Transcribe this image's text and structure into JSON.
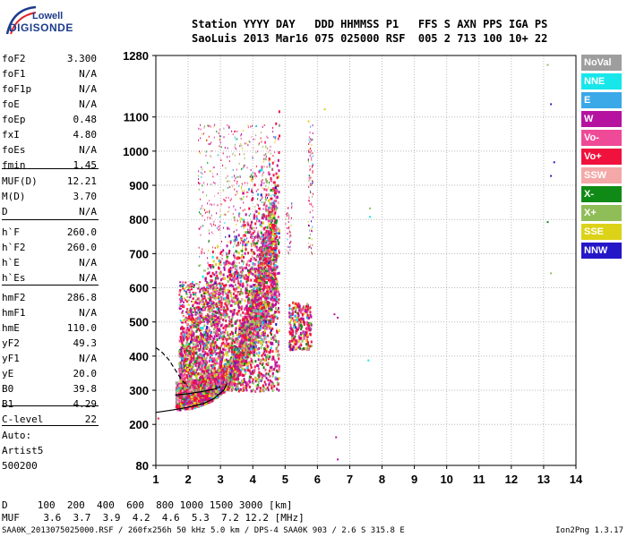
{
  "logo": {
    "top": "Lowell",
    "bottom": "DIGISONDE"
  },
  "header": {
    "row1": "Station YYYY DAY   DDD HHMMSS P1   FFS S AXN PPS IGA PS",
    "row2": "SaoLuis 2013 Mar16 075 025000 RSF  005 2 713 100 10+ 22"
  },
  "params": [
    {
      "k": "foF2",
      "v": "3.300"
    },
    {
      "k": "foF1",
      "v": "N/A"
    },
    {
      "k": "foF1p",
      "v": "N/A"
    },
    {
      "k": "foE",
      "v": "N/A"
    },
    {
      "k": "foEp",
      "v": "0.48"
    },
    {
      "k": "fxI",
      "v": "4.80"
    },
    {
      "k": "foEs",
      "v": "N/A"
    },
    {
      "k": "fmin",
      "v": "1.45"
    },
    {
      "k": "MUF(D)",
      "v": "12.21"
    },
    {
      "k": "M(D)",
      "v": "3.70"
    },
    {
      "k": "D",
      "v": "N/A"
    },
    {
      "k": "h`F",
      "v": "260.0"
    },
    {
      "k": "h`F2",
      "v": "260.0"
    },
    {
      "k": "h`E",
      "v": "N/A"
    },
    {
      "k": "h`Es",
      "v": "N/A"
    },
    {
      "k": "hmF2",
      "v": "286.8"
    },
    {
      "k": "hmF1",
      "v": "N/A"
    },
    {
      "k": "hmE",
      "v": "110.0"
    },
    {
      "k": "yF2",
      "v": "49.3"
    },
    {
      "k": "yF1",
      "v": "N/A"
    },
    {
      "k": "yE",
      "v": "20.0"
    },
    {
      "k": "B0",
      "v": "39.8"
    },
    {
      "k": "B1",
      "v": "4.29"
    },
    {
      "k": "C-level",
      "v": "22"
    }
  ],
  "auto": [
    "Auto:",
    "Artist5",
    "500200"
  ],
  "footer": {
    "row1": "D     100  200  400  600  800 1000 1500 3000 [km]",
    "row2": "MUF    3.6  3.7  3.9  4.2  4.6  5.3  7.2 12.2 [MHz]",
    "left": "SAA0K_2013075025000.RSF / 260fx256h 50 kHz 5.0 km / DPS-4 SAA0K 903 / 2.6 S 315.8 E",
    "right": "Ion2Png 1.3.17"
  },
  "legend": [
    {
      "label": "NoVal",
      "color": "#9e9e9e"
    },
    {
      "label": "NNE",
      "color": "#17e6ea"
    },
    {
      "label": "E",
      "color": "#3ba8e8"
    },
    {
      "label": "W",
      "color": "#b5139f"
    },
    {
      "label": "Vo-",
      "color": "#ee4a97"
    },
    {
      "label": "Vo+",
      "color": "#f0123d"
    },
    {
      "label": "SSW",
      "color": "#f4a8a8"
    },
    {
      "label": "X-",
      "color": "#108a16"
    },
    {
      "label": "X+",
      "color": "#8fbe58"
    },
    {
      "label": "SSE",
      "color": "#dcd218"
    },
    {
      "label": "NNW",
      "color": "#2417c8"
    }
  ],
  "chart_data": {
    "type": "scatter",
    "x_ticks": [
      1,
      2,
      3,
      4,
      5,
      6,
      7,
      8,
      9,
      10,
      11,
      12,
      13,
      14
    ],
    "y_ticks": [
      80,
      200,
      300,
      400,
      500,
      600,
      700,
      800,
      900,
      1000,
      1100,
      1280
    ],
    "xlim": [
      1,
      14
    ],
    "ylim": [
      80,
      1280
    ],
    "grid": true,
    "legend_position": "right",
    "curves": {
      "profile_solid": [
        [
          1.0,
          235
        ],
        [
          1.5,
          242
        ],
        [
          2.0,
          250
        ],
        [
          2.5,
          262
        ],
        [
          2.8,
          276
        ],
        [
          3.1,
          300
        ],
        [
          3.2,
          320
        ]
      ],
      "trace_solid": [
        [
          1.6,
          286
        ],
        [
          2.0,
          290
        ],
        [
          2.4,
          296
        ],
        [
          2.8,
          303
        ],
        [
          3.0,
          310
        ]
      ],
      "trace_dashed": [
        [
          1.0,
          425
        ],
        [
          1.2,
          410
        ],
        [
          1.4,
          390
        ],
        [
          1.6,
          360
        ],
        [
          1.8,
          330
        ],
        [
          2.0,
          310
        ]
      ]
    },
    "isolated_points": [
      {
        "x": 13.1,
        "y": 1255,
        "c": "#8fbe58"
      },
      {
        "x": 13.2,
        "y": 1140,
        "c": "#2417c8"
      },
      {
        "x": 13.3,
        "y": 970,
        "c": "#2417c8"
      },
      {
        "x": 13.2,
        "y": 930,
        "c": "#2417c8"
      },
      {
        "x": 13.1,
        "y": 795,
        "c": "#108a16"
      },
      {
        "x": 13.2,
        "y": 645,
        "c": "#8fbe58"
      },
      {
        "x": 7.6,
        "y": 835,
        "c": "#8fbe58"
      },
      {
        "x": 7.6,
        "y": 810,
        "c": "#17e6ea"
      },
      {
        "x": 7.55,
        "y": 390,
        "c": "#17e6ea"
      },
      {
        "x": 6.55,
        "y": 165,
        "c": "#b5139f"
      },
      {
        "x": 6.6,
        "y": 100,
        "c": "#b5139f"
      },
      {
        "x": 6.6,
        "y": 515,
        "c": "#b5139f"
      },
      {
        "x": 6.5,
        "y": 525,
        "c": "#b5139f"
      },
      {
        "x": 6.2,
        "y": 1125,
        "c": "#dcd218"
      },
      {
        "x": 5.7,
        "y": 1090,
        "c": "#dcd218"
      },
      {
        "x": 1.05,
        "y": 220,
        "c": "#f0123d"
      }
    ]
  }
}
